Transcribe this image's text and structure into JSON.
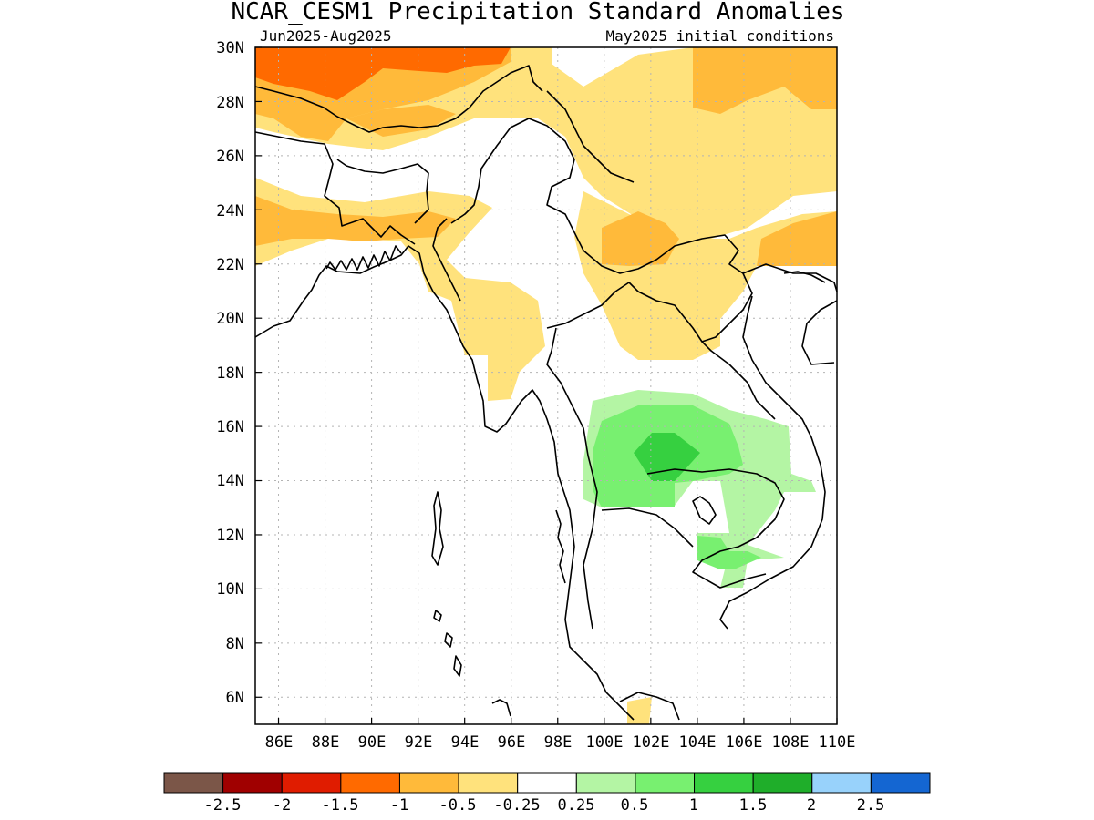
{
  "title": "NCAR_CESM1 Precipitation Standard Anomalies",
  "subtitle_left": "Jun2025-Aug2025",
  "subtitle_right": "May2025 initial conditions",
  "map": {
    "lat_labels": [
      "6N",
      "8N",
      "10N",
      "12N",
      "14N",
      "16N",
      "18N",
      "20N",
      "22N",
      "24N",
      "26N",
      "28N",
      "30N"
    ],
    "lon_labels": [
      "86E",
      "88E",
      "90E",
      "92E",
      "94E",
      "96E",
      "98E",
      "100E",
      "102E",
      "104E",
      "106E",
      "108E",
      "110E"
    ],
    "lat_range": [
      5,
      30
    ],
    "lon_range": [
      85,
      110
    ],
    "grid": "dotted"
  },
  "colorbar": {
    "colors": [
      "#7b5648",
      "#a00000",
      "#e01c00",
      "#ff6a00",
      "#ffba3a",
      "#ffe27c",
      "#ffffff",
      "#b4f5a4",
      "#78f070",
      "#36d040",
      "#1fae2a",
      "#98d2fb",
      "#1466d2"
    ],
    "labels": [
      "-2.5",
      "-2",
      "-1.5",
      "-1",
      "-0.5",
      "-0.25",
      "0.25",
      "0.5",
      "1",
      "1.5",
      "2",
      "2.5"
    ]
  },
  "colors": {
    "dry_strong": "#ff6a00",
    "dry_moderate": "#ffba3a",
    "dry_weak": "#ffe27c",
    "wet_weak": "#b4f5a4",
    "wet_moderate": "#78f070",
    "wet_strong": "#36d040"
  }
}
